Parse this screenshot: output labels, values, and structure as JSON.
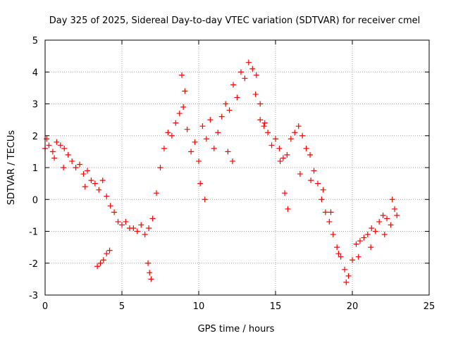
{
  "chart_data": {
    "type": "scatter",
    "title": "Day 325 of 2025, Sidereal Day-to-day VTEC variation (SDTVAR) for receiver cmel",
    "xlabel": "GPS time / hours",
    "ylabel": "SDTVAR / TECUs",
    "xlim": [
      0,
      25
    ],
    "ylim": [
      -3,
      5
    ],
    "x_ticks": [
      0,
      5,
      10,
      15,
      20,
      25
    ],
    "y_ticks": [
      -3,
      -2,
      -1,
      0,
      1,
      2,
      3,
      4,
      5
    ],
    "x_tick_labels": [
      "0",
      "5",
      "10",
      "15",
      "20",
      "25"
    ],
    "y_tick_labels": [
      "-3",
      "-2",
      "-1",
      "0",
      "1",
      "2",
      "3",
      "4",
      "5"
    ],
    "grid": true,
    "marker": "+",
    "series": [
      {
        "name": "SDTVAR",
        "color": "#ff0000",
        "x": [
          0.0,
          0.25,
          0.5,
          0.75,
          1.0,
          1.25,
          1.5,
          1.75,
          2.0,
          2.25,
          2.5,
          2.75,
          3.0,
          3.25,
          3.5,
          3.75,
          4.0,
          4.25,
          4.5,
          4.75,
          5.0,
          5.25,
          5.5,
          5.75,
          6.0,
          6.25,
          6.5,
          6.75,
          7.0,
          7.25,
          7.5,
          7.75,
          8.0,
          8.25,
          8.5,
          8.75,
          9.0,
          9.25,
          9.5,
          9.75,
          10.0,
          10.25,
          10.5,
          10.75,
          11.0,
          11.25,
          11.5,
          11.75,
          12.0,
          12.25,
          12.5,
          12.75,
          13.0,
          13.25,
          13.5,
          13.75,
          14.0,
          14.25,
          14.5,
          14.75,
          15.0,
          15.25,
          15.5,
          15.75,
          16.0,
          16.25,
          16.5,
          16.75,
          17.0,
          17.25,
          17.5,
          17.75,
          18.0,
          18.25,
          18.5,
          18.75,
          19.0,
          19.25,
          19.5,
          19.75,
          20.0,
          20.25,
          20.5,
          20.75,
          21.0,
          21.25,
          21.5,
          21.75,
          22.0,
          22.25,
          22.5,
          22.75,
          22.9,
          0.1,
          0.6,
          1.2,
          2.6,
          3.4,
          3.6,
          3.8,
          4.0,
          4.2,
          6.7,
          6.8,
          6.9,
          8.9,
          9.1,
          10.1,
          10.4,
          11.9,
          12.2,
          13.7,
          14.0,
          14.3,
          15.3,
          15.6,
          15.8,
          16.6,
          17.3,
          18.1,
          18.6,
          19.1,
          19.6,
          20.4,
          21.2,
          22.1,
          22.6
        ],
        "y": [
          1.6,
          1.7,
          1.5,
          1.8,
          1.7,
          1.6,
          1.4,
          1.2,
          1.0,
          1.1,
          0.8,
          0.9,
          0.6,
          0.5,
          0.3,
          0.6,
          0.1,
          -0.2,
          -0.4,
          -0.7,
          -0.8,
          -0.7,
          -0.9,
          -0.9,
          -1.0,
          -0.8,
          -1.1,
          -0.9,
          -0.6,
          0.2,
          1.0,
          1.6,
          2.1,
          2.0,
          2.4,
          2.7,
          2.9,
          2.2,
          1.5,
          1.8,
          1.2,
          2.3,
          1.9,
          2.5,
          1.6,
          2.1,
          2.6,
          3.0,
          2.8,
          3.6,
          3.2,
          4.0,
          3.8,
          4.3,
          4.1,
          3.9,
          2.5,
          2.3,
          2.1,
          1.7,
          1.9,
          1.6,
          1.3,
          1.4,
          1.9,
          2.1,
          2.3,
          2.0,
          1.6,
          1.4,
          0.9,
          0.5,
          0.0,
          -0.4,
          -0.7,
          -1.1,
          -1.5,
          -1.8,
          -2.2,
          -2.4,
          -1.9,
          -1.4,
          -1.3,
          -1.2,
          -1.1,
          -0.9,
          -1.0,
          -0.7,
          -0.5,
          -0.6,
          -0.8,
          -0.3,
          -0.5,
          1.9,
          1.3,
          1.0,
          0.4,
          -2.1,
          -2.0,
          -1.9,
          -1.7,
          -1.6,
          -2.0,
          -2.3,
          -2.5,
          3.9,
          3.4,
          0.5,
          0.0,
          1.5,
          1.2,
          3.3,
          3.0,
          2.4,
          1.2,
          0.2,
          -0.3,
          0.8,
          0.6,
          0.3,
          -0.4,
          -1.7,
          -2.6,
          -1.8,
          -1.5,
          -1.1,
          0.0
        ]
      }
    ]
  }
}
